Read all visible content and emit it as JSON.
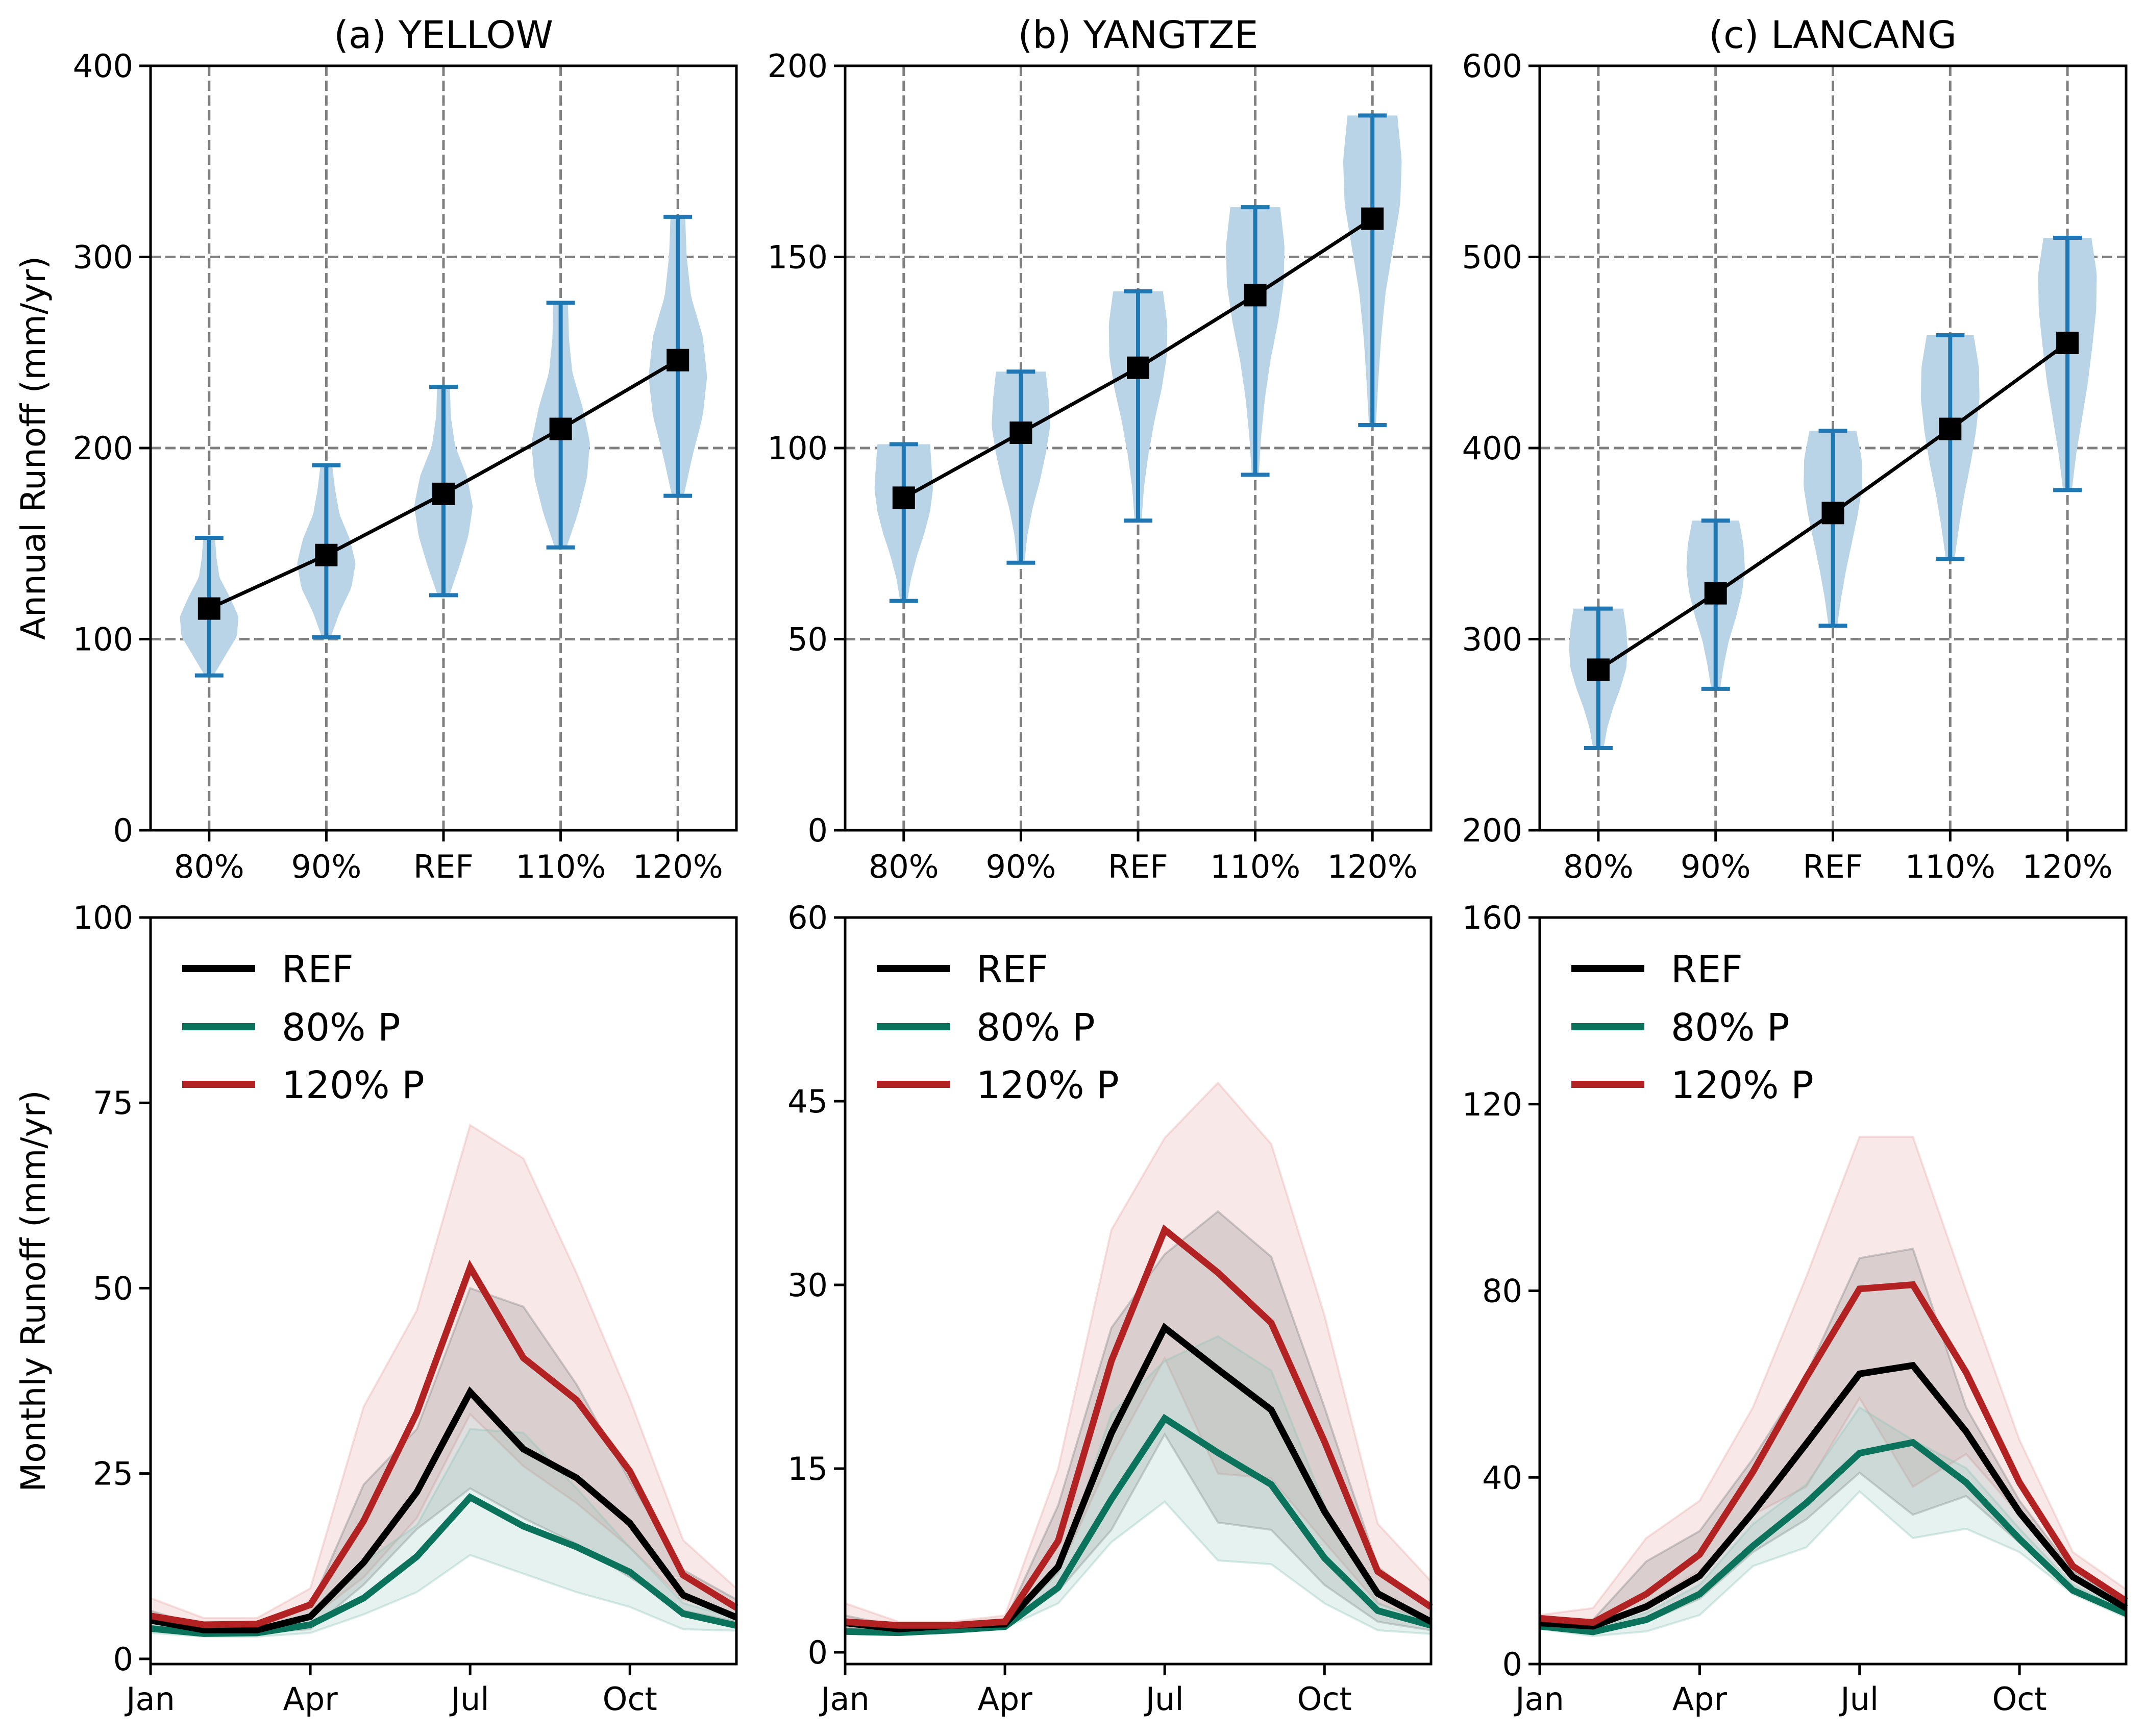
{
  "colors": {
    "violin_fill": "#b9d4e7",
    "violin_line": "#1f77b4",
    "mean_marker": "#000000",
    "grid": "#808080",
    "ref": "#000000",
    "p80": "#0b735c",
    "p120": "#b22222",
    "band_ref": "#7f7f7f",
    "band_p80": "#8cc4b6",
    "band_p120": "#e8a5a5"
  },
  "chart_data": [
    {
      "id": "a-top",
      "type": "violin",
      "title": "(a) YELLOW",
      "ylabel": "Annual Runoff (mm/yr)",
      "xlabel": "",
      "categories": [
        "80%",
        "90%",
        "REF",
        "110%",
        "120%"
      ],
      "ylim": [
        0,
        400
      ],
      "yticks": [
        0,
        100,
        200,
        300,
        400
      ],
      "grid": true,
      "series": [
        {
          "category": "80%",
          "min": 81,
          "max": 153,
          "mean": 116,
          "shape": [
            0.15,
            0.55,
            0.95,
            1.0,
            0.7,
            0.35,
            0.25,
            0.2
          ]
        },
        {
          "category": "90%",
          "min": 101,
          "max": 191,
          "mean": 144,
          "shape": [
            0.15,
            0.45,
            0.85,
            1.0,
            0.8,
            0.45,
            0.3,
            0.2
          ]
        },
        {
          "category": "REF",
          "min": 123,
          "max": 232,
          "mean": 176,
          "shape": [
            0.2,
            0.55,
            0.85,
            1.0,
            0.8,
            0.4,
            0.25,
            0.22
          ]
        },
        {
          "category": "110%",
          "min": 148,
          "max": 276,
          "mean": 210,
          "shape": [
            0.2,
            0.6,
            0.9,
            1.0,
            0.75,
            0.4,
            0.28,
            0.25
          ]
        },
        {
          "category": "120%",
          "min": 175,
          "max": 321,
          "mean": 246,
          "shape": [
            0.2,
            0.5,
            0.85,
            1.0,
            0.85,
            0.45,
            0.3,
            0.25
          ]
        }
      ],
      "mean_line": [
        116,
        144,
        176,
        210,
        246
      ]
    },
    {
      "id": "b-top",
      "type": "violin",
      "title": "(b) YANGTZE",
      "ylabel": "",
      "xlabel": "",
      "categories": [
        "80%",
        "90%",
        "REF",
        "110%",
        "120%"
      ],
      "ylim": [
        0,
        200
      ],
      "yticks": [
        0,
        50,
        100,
        150,
        200
      ],
      "grid": true,
      "series": [
        {
          "category": "80%",
          "min": 60,
          "max": 101,
          "mean": 87,
          "shape": [
            0.12,
            0.25,
            0.45,
            0.7,
            0.9,
            1.0,
            0.95,
            0.9
          ]
        },
        {
          "category": "90%",
          "min": 70,
          "max": 120,
          "mean": 104,
          "shape": [
            0.12,
            0.22,
            0.4,
            0.65,
            0.85,
            1.0,
            0.95,
            0.85
          ]
        },
        {
          "category": "REF",
          "min": 81,
          "max": 141,
          "mean": 121,
          "shape": [
            0.12,
            0.2,
            0.35,
            0.55,
            0.8,
            0.98,
            1.0,
            0.85
          ]
        },
        {
          "category": "110%",
          "min": 93,
          "max": 163,
          "mean": 140,
          "shape": [
            0.12,
            0.2,
            0.33,
            0.52,
            0.78,
            0.97,
            1.0,
            0.85
          ]
        },
        {
          "category": "120%",
          "min": 106,
          "max": 187,
          "mean": 160,
          "shape": [
            0.12,
            0.2,
            0.3,
            0.45,
            0.7,
            0.95,
            1.0,
            0.85
          ]
        }
      ],
      "mean_line": [
        87,
        104,
        121,
        140,
        160
      ]
    },
    {
      "id": "c-top",
      "type": "violin",
      "title": "(c) LANCANG",
      "ylabel": "",
      "xlabel": "",
      "categories": [
        "80%",
        "90%",
        "REF",
        "110%",
        "120%"
      ],
      "ylim": [
        200,
        600
      ],
      "yticks": [
        200,
        300,
        400,
        500,
        600
      ],
      "grid": true,
      "series": [
        {
          "category": "80%",
          "min": 243,
          "max": 316,
          "mean": 284,
          "shape": [
            0.18,
            0.3,
            0.5,
            0.75,
            0.95,
            1.0,
            0.95,
            0.85
          ]
        },
        {
          "category": "90%",
          "min": 274,
          "max": 362,
          "mean": 324,
          "shape": [
            0.15,
            0.28,
            0.45,
            0.7,
            0.9,
            1.0,
            0.95,
            0.8
          ]
        },
        {
          "category": "REF",
          "min": 307,
          "max": 409,
          "mean": 366,
          "shape": [
            0.15,
            0.28,
            0.45,
            0.65,
            0.85,
            1.0,
            0.98,
            0.8
          ]
        },
        {
          "category": "110%",
          "min": 342,
          "max": 459,
          "mean": 410,
          "shape": [
            0.15,
            0.3,
            0.48,
            0.7,
            0.88,
            1.0,
            0.98,
            0.8
          ]
        },
        {
          "category": "120%",
          "min": 378,
          "max": 510,
          "mean": 455,
          "shape": [
            0.15,
            0.3,
            0.5,
            0.7,
            0.85,
            0.98,
            1.0,
            0.82
          ]
        }
      ],
      "mean_line": [
        284,
        324,
        366,
        410,
        455
      ]
    },
    {
      "id": "a-bottom",
      "type": "line",
      "title": "",
      "ylabel": "Monthly Runoff (mm/yr)",
      "xlabel": "",
      "x": [
        1,
        2,
        3,
        4,
        5,
        6,
        7,
        8,
        9,
        10,
        11,
        12
      ],
      "xticks": [
        1,
        4,
        7,
        10
      ],
      "xtick_labels": [
        "Jan",
        "Apr",
        "Jul",
        "Oct"
      ],
      "ylim": [
        -0.7,
        100
      ],
      "yticks": [
        0,
        25,
        50,
        75,
        100
      ],
      "grid": false,
      "legend": {
        "placement": "top-left",
        "entries": [
          "REF",
          "80% P",
          "120% P"
        ]
      },
      "series": [
        {
          "name": "REF",
          "key": "ref",
          "values": [
            5.2,
            3.9,
            3.9,
            5.7,
            13.0,
            22.5,
            36.0,
            28.3,
            24.4,
            18.3,
            8.6,
            5.6
          ],
          "upper": [
            6.5,
            4.3,
            4.3,
            7.0,
            23.5,
            31.0,
            50.0,
            47.5,
            37.0,
            24.0,
            12.0,
            8.0
          ],
          "lower": [
            4.3,
            3.5,
            3.5,
            4.0,
            10.0,
            17.5,
            23.0,
            19.0,
            15.5,
            11.0,
            6.5,
            5.0
          ]
        },
        {
          "name": "80% P",
          "key": "p80",
          "values": [
            4.1,
            3.4,
            3.5,
            4.6,
            8.2,
            13.8,
            21.8,
            17.9,
            15.1,
            11.7,
            6.1,
            4.5
          ],
          "upper": [
            5.0,
            3.8,
            3.8,
            5.5,
            13.0,
            18.0,
            31.0,
            30.5,
            23.0,
            15.0,
            7.5,
            5.5
          ],
          "lower": [
            3.5,
            3.0,
            3.0,
            3.5,
            6.0,
            9.0,
            14.0,
            11.5,
            9.0,
            7.0,
            4.0,
            3.8
          ]
        },
        {
          "name": "120% P",
          "key": "p120",
          "values": [
            5.8,
            4.6,
            4.7,
            7.3,
            18.6,
            33.2,
            52.8,
            40.6,
            34.9,
            25.3,
            11.3,
            6.9
          ],
          "upper": [
            8.2,
            5.5,
            5.5,
            9.5,
            34.0,
            47.0,
            72.0,
            67.5,
            52.0,
            35.0,
            16.0,
            9.5
          ],
          "lower": [
            5.0,
            4.0,
            4.0,
            5.5,
            11.0,
            19.0,
            33.0,
            26.0,
            21.0,
            15.0,
            8.0,
            6.0
          ]
        }
      ]
    },
    {
      "id": "b-bottom",
      "type": "line",
      "title": "",
      "ylabel": "",
      "xlabel": "",
      "x": [
        1,
        2,
        3,
        4,
        5,
        6,
        7,
        8,
        9,
        10,
        11,
        12
      ],
      "xticks": [
        1,
        4,
        7,
        10
      ],
      "xtick_labels": [
        "Jan",
        "Apr",
        "Jul",
        "Oct"
      ],
      "ylim": [
        -0.96,
        60
      ],
      "yticks": [
        0,
        15,
        30,
        45,
        60
      ],
      "grid": false,
      "legend": {
        "placement": "top-left",
        "entries": [
          "REF",
          "80% P",
          "120% P"
        ]
      },
      "series": [
        {
          "name": "REF",
          "key": "ref",
          "values": [
            2.4,
            1.9,
            2.2,
            2.3,
            7.0,
            17.9,
            26.5,
            23.1,
            19.8,
            11.5,
            4.8,
            2.5
          ],
          "upper": [
            3.0,
            2.1,
            2.3,
            2.5,
            12.0,
            26.5,
            32.5,
            36.0,
            32.3,
            20.0,
            7.0,
            3.5
          ],
          "lower": [
            1.8,
            1.7,
            1.9,
            2.0,
            5.0,
            10.0,
            17.8,
            10.6,
            10.0,
            5.5,
            2.5,
            1.8
          ]
        },
        {
          "name": "80% P",
          "key": "p80",
          "values": [
            1.7,
            1.6,
            1.8,
            2.1,
            5.3,
            12.5,
            19.1,
            16.3,
            13.7,
            7.7,
            3.4,
            2.2
          ],
          "upper": [
            2.0,
            1.8,
            1.9,
            2.2,
            6.5,
            19.5,
            23.8,
            25.8,
            23.0,
            12.0,
            4.0,
            2.4
          ],
          "lower": [
            1.5,
            1.4,
            1.7,
            2.0,
            4.0,
            9.0,
            12.3,
            7.5,
            7.2,
            4.0,
            1.8,
            1.5
          ]
        },
        {
          "name": "120% P",
          "key": "p120",
          "values": [
            2.5,
            2.2,
            2.2,
            2.5,
            9.1,
            23.8,
            34.5,
            31.0,
            26.9,
            17.2,
            6.6,
            3.7
          ],
          "upper": [
            4.0,
            2.5,
            2.5,
            3.0,
            15.0,
            34.5,
            42.0,
            46.5,
            41.5,
            27.5,
            10.5,
            5.8
          ],
          "lower": [
            2.0,
            1.9,
            2.0,
            2.2,
            6.5,
            16.0,
            24.0,
            14.6,
            14.2,
            9.0,
            4.0,
            2.5
          ]
        }
      ]
    },
    {
      "id": "c-bottom",
      "type": "line",
      "title": "",
      "ylabel": "",
      "xlabel": "",
      "x": [
        1,
        2,
        3,
        4,
        5,
        6,
        7,
        8,
        9,
        10,
        11,
        12
      ],
      "xticks": [
        1,
        4,
        7,
        10
      ],
      "xtick_labels": [
        "Jan",
        "Apr",
        "Jul",
        "Oct"
      ],
      "ylim": [
        0,
        160
      ],
      "yticks": [
        0,
        40,
        80,
        120,
        160
      ],
      "grid": false,
      "legend": {
        "placement": "top-left",
        "entries": [
          "REF",
          "80% P",
          "120% P"
        ]
      },
      "series": [
        {
          "name": "REF",
          "key": "ref",
          "values": [
            8.8,
            8.1,
            12.3,
            18.9,
            32.5,
            47.2,
            62.2,
            64.0,
            49.8,
            32.5,
            18.7,
            12.0
          ],
          "upper": [
            9.5,
            9.5,
            22.0,
            28.5,
            44.0,
            62.0,
            87.0,
            89.0,
            55.0,
            35.0,
            20.0,
            13.0
          ],
          "lower": [
            8.3,
            7.0,
            9.0,
            14.0,
            24.0,
            31.0,
            41.0,
            32.0,
            36.0,
            26.0,
            16.0,
            11.0
          ]
        },
        {
          "name": "80% P",
          "key": "p80",
          "values": [
            8.1,
            6.9,
            9.5,
            15.0,
            25.3,
            34.5,
            45.2,
            47.5,
            38.9,
            26.8,
            15.8,
            10.8
          ],
          "upper": [
            8.5,
            7.5,
            11.0,
            17.0,
            30.0,
            38.5,
            55.0,
            48.0,
            42.0,
            29.0,
            17.0,
            11.5
          ],
          "lower": [
            7.5,
            6.0,
            7.0,
            10.5,
            21.0,
            25.0,
            37.0,
            27.0,
            29.0,
            24.0,
            15.0,
            10.0
          ]
        },
        {
          "name": "120% P",
          "key": "p120",
          "values": [
            9.8,
            8.9,
            15.0,
            23.5,
            41.2,
            61.4,
            80.4,
            81.3,
            62.5,
            38.9,
            21.0,
            13.5
          ],
          "upper": [
            10.5,
            12.0,
            27.0,
            35.0,
            55.0,
            83.0,
            113.0,
            113.0,
            80.0,
            48.0,
            24.0,
            16.0
          ],
          "lower": [
            9.0,
            8.0,
            13.0,
            20.0,
            32.0,
            38.0,
            57.0,
            38.0,
            45.0,
            32.0,
            19.0,
            12.0
          ]
        }
      ]
    }
  ]
}
